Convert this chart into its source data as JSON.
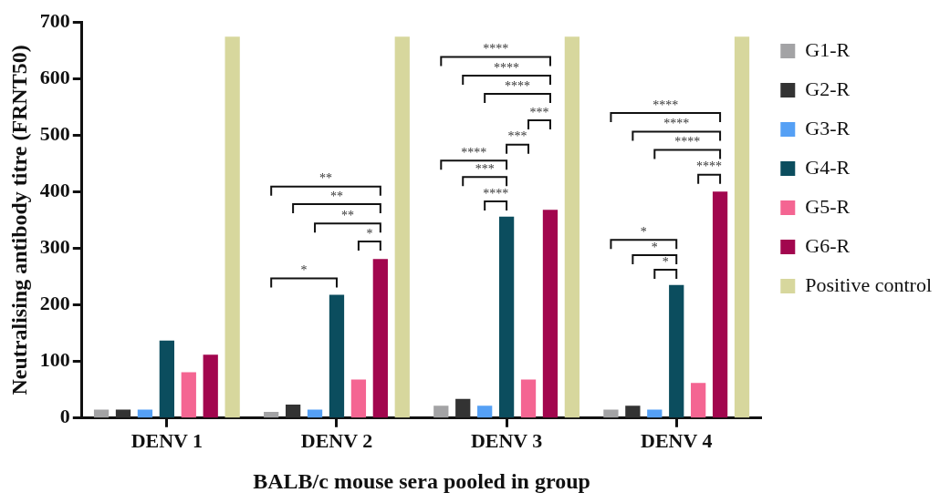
{
  "chart_data": {
    "type": "bar",
    "xlabel": "BALB/c mouse sera pooled in group",
    "ylabel": "Neutralising antibody titre (FRNT50)",
    "categories": [
      "DENV 1",
      "DENV 2",
      "DENV 3",
      "DENV 4"
    ],
    "series": [
      {
        "name": "G1-R",
        "color": "#a3a3a5",
        "values": [
          15,
          11,
          22,
          15
        ]
      },
      {
        "name": "G2-R",
        "color": "#333333",
        "values": [
          15,
          24,
          34,
          22
        ]
      },
      {
        "name": "G3-R",
        "color": "#55a0f5",
        "values": [
          15,
          15,
          22,
          15
        ]
      },
      {
        "name": "G4-R",
        "color": "#0b4d5e",
        "values": [
          137,
          218,
          356,
          235
        ]
      },
      {
        "name": "G5-R",
        "color": "#f46592",
        "values": [
          81,
          68,
          68,
          62
        ]
      },
      {
        "name": "G6-R",
        "color": "#a2064e",
        "values": [
          112,
          281,
          368,
          400
        ]
      },
      {
        "name": "Positive control",
        "color": "#d7d79d",
        "values": [
          674,
          674,
          674,
          674
        ]
      }
    ],
    "ylim": [
      0,
      700
    ],
    "yticks": [
      0,
      100,
      200,
      300,
      400,
      500,
      600,
      700
    ],
    "grid": false,
    "legend": "right",
    "annotations": [
      "*",
      "**",
      "**",
      "**",
      "*",
      "****",
      "****",
      "****",
      "***",
      "***",
      "****",
      "***",
      "****",
      "****",
      "****",
      "****",
      "****",
      "*",
      "*",
      "*"
    ]
  }
}
